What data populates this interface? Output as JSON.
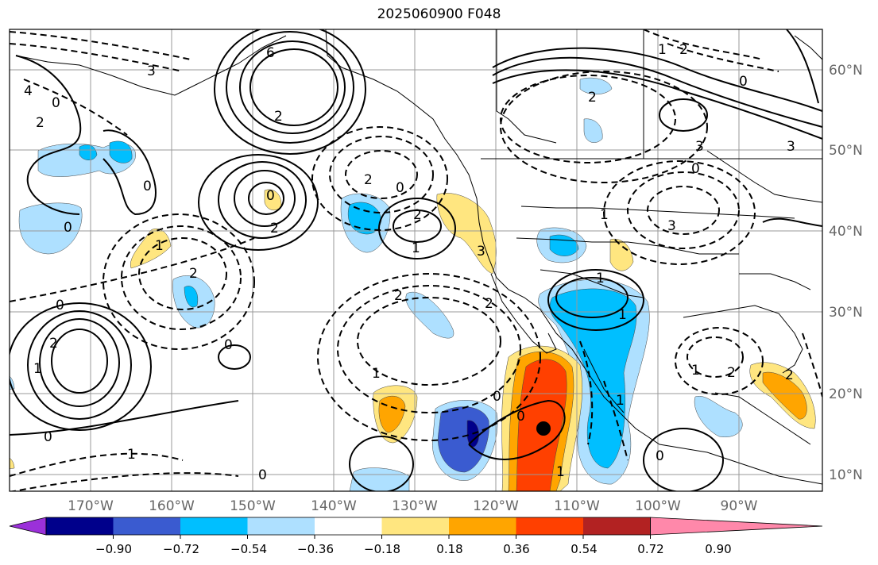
{
  "title": "2025060900 F048",
  "map": {
    "lat_labels": [
      "60°N",
      "50°N",
      "40°N",
      "30°N",
      "20°N",
      "10°N"
    ],
    "lon_labels": [
      "170°W",
      "160°W",
      "150°W",
      "140°W",
      "130°W",
      "120°W",
      "110°W",
      "100°W",
      "90°W"
    ],
    "gridlines": true,
    "contour_style": "solid positive, dashed negative",
    "contour_labels": [
      "3",
      "6",
      "4",
      "2",
      "0",
      "2",
      "2",
      "0",
      "1",
      "1",
      "0",
      "2",
      "1",
      "2",
      "0",
      "2",
      "1",
      "2",
      "2",
      "1",
      "0",
      "0",
      "1",
      "0",
      "1",
      "2",
      "1",
      "1",
      "0",
      "0",
      "1",
      "1",
      "2",
      "2",
      "1",
      "3",
      "0",
      "3",
      "2",
      "2",
      "1",
      "0",
      "1",
      "1",
      "0",
      "2",
      "0",
      "2",
      "0",
      "1",
      "2",
      "3",
      "0",
      "2",
      "1",
      "3",
      "0",
      "3",
      "2",
      "2",
      "1",
      "0",
      "1",
      "1"
    ],
    "marker": "storm-center-dot"
  },
  "colorbar": {
    "tick_labels": [
      "−0.90",
      "−0.72",
      "−0.54",
      "−0.36",
      "−0.18",
      "0.18",
      "0.36",
      "0.54",
      "0.72",
      "0.90"
    ],
    "colors": [
      "#9b30d9",
      "#00008b",
      "#3a5bd0",
      "#00bfff",
      "#aee0ff",
      "#ffffff",
      "#ffe680",
      "#ffa500",
      "#ff4000",
      "#b22222",
      "#ff88aa"
    ],
    "extend": "both"
  }
}
